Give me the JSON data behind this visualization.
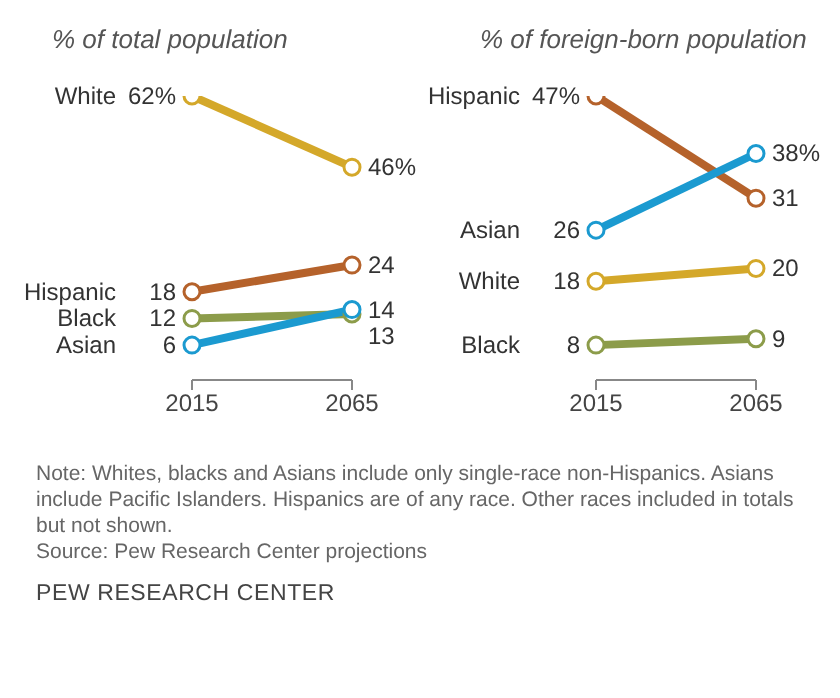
{
  "chart_data": [
    {
      "type": "line",
      "title": "% of total population",
      "categories": [
        "2015",
        "2065"
      ],
      "marker": "circle",
      "series": [
        {
          "name": "White",
          "color": "#d4a82a",
          "values": [
            62,
            46
          ],
          "value_labels": [
            "62%",
            "46%"
          ]
        },
        {
          "name": "Hispanic",
          "color": "#b5622b",
          "values": [
            18,
            24
          ],
          "value_labels": [
            "18",
            "24"
          ]
        },
        {
          "name": "Black",
          "color": "#8c9c4a",
          "values": [
            12,
            13
          ],
          "value_labels": [
            "12",
            "13"
          ]
        },
        {
          "name": "Asian",
          "color": "#1b9ad0",
          "values": [
            6,
            14
          ],
          "value_labels": [
            "6",
            "14"
          ]
        }
      ]
    },
    {
      "type": "line",
      "title": "% of foreign-born population",
      "categories": [
        "2015",
        "2065"
      ],
      "marker": "circle",
      "series": [
        {
          "name": "Hispanic",
          "color": "#b5622b",
          "values": [
            47,
            31
          ],
          "value_labels": [
            "47%",
            "31"
          ]
        },
        {
          "name": "Asian",
          "color": "#1b9ad0",
          "values": [
            26,
            38
          ],
          "value_labels": [
            "26",
            "38%"
          ]
        },
        {
          "name": "White",
          "color": "#d4a82a",
          "values": [
            18,
            20
          ],
          "value_labels": [
            "18",
            "20"
          ]
        },
        {
          "name": "Black",
          "color": "#8c9c4a",
          "values": [
            8,
            9
          ],
          "value_labels": [
            "8",
            "9"
          ]
        }
      ],
      "annotations": [
        "Note: Whites, blacks and Asians include only single-race non-Hispanics. Asians include Pacific Islanders. Hispanics are of any race. Other races included in totals but not shown.",
        "Source: Pew Research Center projections",
        "PEW RESEARCH CENTER"
      ]
    }
  ]
}
